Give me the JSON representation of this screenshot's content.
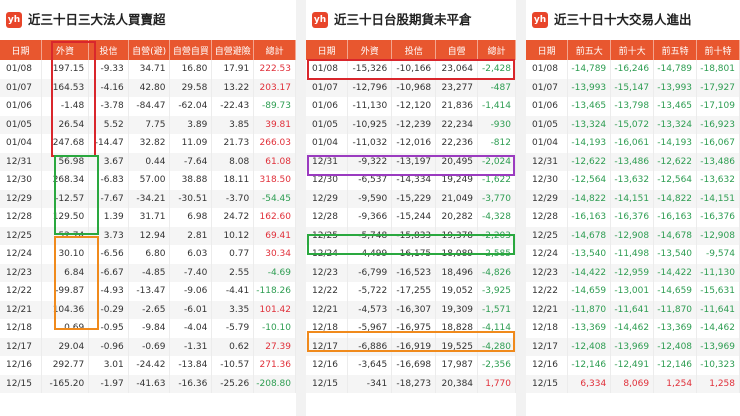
{
  "panels": [
    {
      "title": "近三十日三大法人買賣超",
      "logo": "yh",
      "headers": [
        "日期",
        "外資",
        "投信",
        "自營(避)",
        "自營自買",
        "自營避險",
        "總計"
      ],
      "rows": [
        [
          "01/08",
          "197.15",
          "-9.33",
          "34.71",
          "16.80",
          "17.91",
          "222.53"
        ],
        [
          "01/07",
          "164.53",
          "-4.16",
          "42.80",
          "29.58",
          "13.22",
          "203.17"
        ],
        [
          "01/06",
          "-1.48",
          "-3.78",
          "-84.47",
          "-62.04",
          "-22.43",
          "-89.73"
        ],
        [
          "01/05",
          "26.54",
          "5.52",
          "7.75",
          "3.89",
          "3.85",
          "39.81"
        ],
        [
          "01/04",
          "247.68",
          "-14.47",
          "32.82",
          "11.09",
          "21.73",
          "266.03"
        ],
        [
          "12/31",
          "56.98",
          "3.67",
          "0.44",
          "-7.64",
          "8.08",
          "61.08"
        ],
        [
          "12/30",
          "268.34",
          "-6.83",
          "57.00",
          "38.88",
          "18.11",
          "318.50"
        ],
        [
          "12/29",
          "-12.57",
          "-7.67",
          "-34.21",
          "-30.51",
          "-3.70",
          "-54.45"
        ],
        [
          "12/28",
          "129.50",
          "1.39",
          "31.71",
          "6.98",
          "24.72",
          "162.60"
        ],
        [
          "12/25",
          "52.74",
          "3.73",
          "12.94",
          "2.81",
          "10.12",
          "69.41"
        ],
        [
          "12/24",
          "30.10",
          "-6.56",
          "6.80",
          "6.03",
          "0.77",
          "30.34"
        ],
        [
          "12/23",
          "6.84",
          "-6.67",
          "-4.85",
          "-7.40",
          "2.55",
          "-4.69"
        ],
        [
          "12/22",
          "-99.87",
          "-4.93",
          "-13.47",
          "-9.06",
          "-4.41",
          "-118.26"
        ],
        [
          "12/21",
          "104.36",
          "-0.29",
          "-2.65",
          "-6.01",
          "3.35",
          "101.42"
        ],
        [
          "12/18",
          "0.69",
          "-0.95",
          "-9.84",
          "-4.04",
          "-5.79",
          "-10.10"
        ],
        [
          "12/17",
          "29.04",
          "-0.96",
          "-0.69",
          "-1.31",
          "0.62",
          "27.39"
        ],
        [
          "12/16",
          "292.77",
          "3.01",
          "-24.42",
          "-13.84",
          "-10.57",
          "271.36"
        ],
        [
          "12/15",
          "-165.20",
          "-1.97",
          "-41.63",
          "-16.36",
          "-25.26",
          "-208.80"
        ]
      ]
    },
    {
      "title": "近三十日台股期貨未平倉",
      "logo": "yh",
      "headers": [
        "日期",
        "外資",
        "投信",
        "自營",
        "總計"
      ],
      "rows": [
        [
          "01/08",
          "-15,326",
          "-10,166",
          "23,064",
          "-2,428"
        ],
        [
          "01/07",
          "-12,796",
          "-10,968",
          "23,277",
          "-487"
        ],
        [
          "01/06",
          "-11,130",
          "-12,120",
          "21,836",
          "-1,414"
        ],
        [
          "01/05",
          "-10,925",
          "-12,239",
          "22,234",
          "-930"
        ],
        [
          "01/04",
          "-11,032",
          "-12,016",
          "22,236",
          "-812"
        ],
        [
          "12/31",
          "-9,322",
          "-13,197",
          "20,495",
          "-2,024"
        ],
        [
          "12/30",
          "-6,537",
          "-14,334",
          "19,249",
          "-1,622"
        ],
        [
          "12/29",
          "-9,590",
          "-15,229",
          "21,049",
          "-3,770"
        ],
        [
          "12/28",
          "-9,366",
          "-15,244",
          "20,282",
          "-4,328"
        ],
        [
          "12/25",
          "-5,748",
          "-15,833",
          "19,378",
          "-2,203"
        ],
        [
          "12/24",
          "-4,499",
          "-16,175",
          "18,089",
          "-2,585"
        ],
        [
          "12/23",
          "-6,799",
          "-16,523",
          "18,496",
          "-4,826"
        ],
        [
          "12/22",
          "-5,722",
          "-17,255",
          "19,052",
          "-3,925"
        ],
        [
          "12/21",
          "-4,573",
          "-16,307",
          "19,309",
          "-1,571"
        ],
        [
          "12/18",
          "-5,967",
          "-16,975",
          "18,828",
          "-4,114"
        ],
        [
          "12/17",
          "-6,886",
          "-16,919",
          "19,525",
          "-4,280"
        ],
        [
          "12/16",
          "-3,645",
          "-16,698",
          "17,987",
          "-2,356"
        ],
        [
          "12/15",
          "-341",
          "-18,273",
          "20,384",
          "1,770"
        ]
      ]
    },
    {
      "title": "近三十日十大交易人進出",
      "logo": "yh",
      "headers": [
        "日期",
        "前五大",
        "前十大",
        "前五特",
        "前十特"
      ],
      "rows": [
        [
          "01/08",
          "-14,789",
          "-16,246",
          "-14,789",
          "-18,801"
        ],
        [
          "01/07",
          "-13,993",
          "-15,147",
          "-13,993",
          "-17,927"
        ],
        [
          "01/06",
          "-13,465",
          "-13,798",
          "-13,465",
          "-17,109"
        ],
        [
          "01/05",
          "-13,324",
          "-15,072",
          "-13,324",
          "-16,923"
        ],
        [
          "01/04",
          "-14,193",
          "-16,061",
          "-14,193",
          "-16,067"
        ],
        [
          "12/31",
          "-12,622",
          "-13,486",
          "-12,622",
          "-13,486"
        ],
        [
          "12/30",
          "-12,564",
          "-13,632",
          "-12,564",
          "-13,632"
        ],
        [
          "12/29",
          "-14,822",
          "-14,151",
          "-14,822",
          "-14,151"
        ],
        [
          "12/28",
          "-16,163",
          "-16,376",
          "-16,163",
          "-16,376"
        ],
        [
          "12/25",
          "-14,678",
          "-12,908",
          "-14,678",
          "-12,908"
        ],
        [
          "12/24",
          "-13,540",
          "-11,498",
          "-13,540",
          "-9,574"
        ],
        [
          "12/23",
          "-14,422",
          "-12,959",
          "-14,422",
          "-11,130"
        ],
        [
          "12/22",
          "-14,659",
          "-13,001",
          "-14,659",
          "-15,631"
        ],
        [
          "12/21",
          "-11,870",
          "-11,641",
          "-11,870",
          "-11,641"
        ],
        [
          "12/18",
          "-13,369",
          "-14,462",
          "-13,369",
          "-14,462"
        ],
        [
          "12/17",
          "-12,408",
          "-13,969",
          "-12,408",
          "-13,969"
        ],
        [
          "12/16",
          "-12,146",
          "-12,491",
          "-12,146",
          "-10,323"
        ],
        [
          "12/15",
          "6,334",
          "8,069",
          "1,254",
          "1,258"
        ]
      ]
    }
  ],
  "colors": {
    "header": "#e8572f",
    "positive": "#e0303a",
    "negative": "#2e9d52",
    "highlight_red": "#d9262c",
    "highlight_green": "#2aa83f",
    "highlight_orange": "#f08a1c",
    "highlight_purple": "#9b3bc0"
  }
}
